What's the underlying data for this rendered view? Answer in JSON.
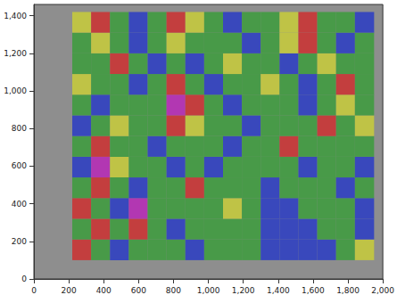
{
  "chart_data": {
    "type": "heatmap",
    "xlim": [
      0,
      2000
    ],
    "xticks": [
      0,
      200,
      400,
      600,
      800,
      1000,
      1200,
      1400,
      1600,
      1800,
      2000
    ],
    "ylim": [
      0,
      1460
    ],
    "yticks": [
      0,
      200,
      400,
      600,
      800,
      1000,
      1200,
      1400
    ],
    "grid": false,
    "x_edges": [
      220,
      328,
      436,
      544,
      652,
      760,
      868,
      976,
      1084,
      1192,
      1300,
      1408,
      1516,
      1624,
      1732,
      1840,
      1950
    ],
    "y_edges": [
      100,
      210,
      320,
      430,
      540,
      650,
      760,
      870,
      980,
      1090,
      1200,
      1310,
      1420
    ],
    "zlim": [
      0,
      4
    ],
    "cells": [
      [
        3,
        1,
        0,
        1,
        1,
        1,
        0,
        1,
        1,
        1,
        0,
        0,
        0,
        0,
        1,
        2
      ],
      [
        1,
        3,
        1,
        3,
        1,
        0,
        1,
        1,
        1,
        1,
        0,
        0,
        0,
        1,
        1,
        0
      ],
      [
        3,
        1,
        0,
        4,
        1,
        1,
        1,
        1,
        2,
        1,
        0,
        0,
        1,
        1,
        1,
        0
      ],
      [
        1,
        3,
        1,
        0,
        1,
        1,
        3,
        1,
        1,
        1,
        0,
        1,
        1,
        1,
        0,
        1
      ],
      [
        0,
        4,
        2,
        1,
        1,
        0,
        1,
        0,
        1,
        1,
        1,
        1,
        0,
        1,
        1,
        0
      ],
      [
        1,
        3,
        1,
        1,
        0,
        1,
        1,
        1,
        0,
        1,
        1,
        3,
        1,
        1,
        1,
        1
      ],
      [
        0,
        1,
        2,
        1,
        1,
        3,
        2,
        1,
        1,
        0,
        1,
        1,
        1,
        3,
        1,
        2
      ],
      [
        1,
        0,
        1,
        1,
        1,
        4,
        3,
        1,
        0,
        1,
        1,
        1,
        0,
        1,
        2,
        1
      ],
      [
        2,
        1,
        1,
        0,
        1,
        3,
        1,
        0,
        1,
        1,
        2,
        1,
        0,
        1,
        3,
        1
      ],
      [
        1,
        1,
        3,
        1,
        0,
        1,
        0,
        1,
        2,
        1,
        1,
        0,
        1,
        2,
        1,
        1
      ],
      [
        1,
        2,
        1,
        0,
        1,
        2,
        1,
        1,
        1,
        0,
        1,
        2,
        3,
        1,
        0,
        1
      ],
      [
        2,
        3,
        1,
        0,
        1,
        3,
        2,
        1,
        0,
        1,
        1,
        2,
        3,
        1,
        1,
        0
      ]
    ]
  }
}
